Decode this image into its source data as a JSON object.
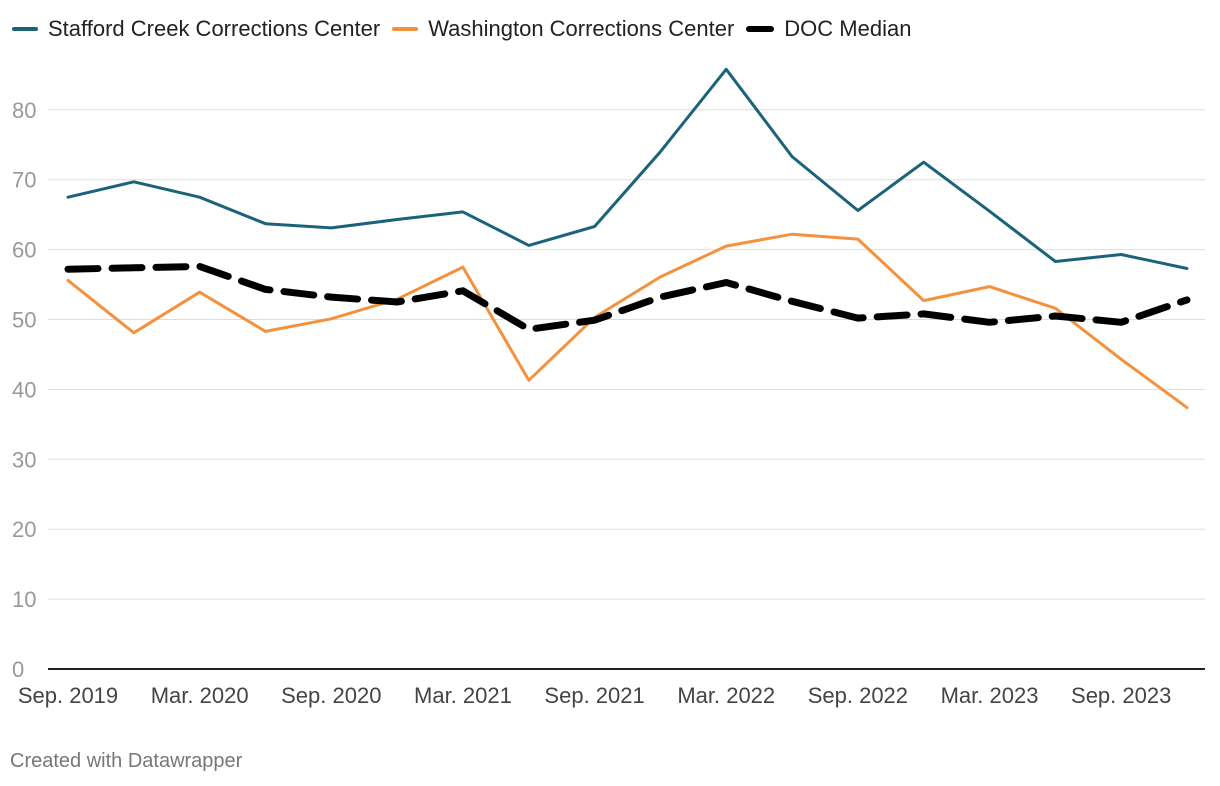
{
  "chart_data": {
    "type": "line",
    "title": "",
    "xlabel": "",
    "ylabel": "",
    "ylim": [
      0,
      90
    ],
    "yticks": [
      0,
      10,
      20,
      30,
      40,
      50,
      60,
      70,
      80
    ],
    "grid": true,
    "legend_position": "top-left",
    "x": [
      "Sep. 2019",
      "Dec. 2019",
      "Mar. 2020",
      "Jun. 2020",
      "Sep. 2020",
      "Dec. 2020",
      "Mar. 2021",
      "Jun. 2021",
      "Sep. 2021",
      "Dec. 2021",
      "Mar. 2022",
      "Jun. 2022",
      "Sep. 2022",
      "Dec. 2022",
      "Mar. 2023",
      "Jun. 2023",
      "Sep. 2023",
      "Dec. 2023"
    ],
    "xtick_labels": [
      "Sep. 2019",
      "Mar. 2020",
      "Sep. 2020",
      "Mar. 2021",
      "Sep. 2021",
      "Mar. 2022",
      "Sep. 2022",
      "Mar. 2023",
      "Sep. 2023"
    ],
    "series": [
      {
        "name": "Stafford Creek Corrections Center",
        "color": "#1b6379",
        "style": "solid",
        "values": [
          67.5,
          69.7,
          67.5,
          63.7,
          63.1,
          64.3,
          65.4,
          60.6,
          63.3,
          74.0,
          85.8,
          73.3,
          65.6,
          72.5,
          65.5,
          58.3,
          59.3,
          57.3
        ]
      },
      {
        "name": "Washington Corrections Center",
        "color": "#f4913d",
        "style": "solid",
        "values": [
          55.6,
          48.1,
          53.9,
          48.3,
          50.1,
          52.9,
          57.5,
          41.3,
          50.3,
          56.1,
          60.5,
          62.2,
          61.5,
          52.7,
          54.7,
          51.6,
          44.3,
          37.4
        ]
      },
      {
        "name": "DOC Median",
        "color": "#000000",
        "style": "dashed",
        "values": [
          57.2,
          57.4,
          57.6,
          54.3,
          53.2,
          52.5,
          54.1,
          48.6,
          49.9,
          53.2,
          55.3,
          52.6,
          50.2,
          50.8,
          49.6,
          50.5,
          49.6,
          52.8
        ]
      }
    ]
  },
  "footer": {
    "credit": "Created with Datawrapper"
  }
}
